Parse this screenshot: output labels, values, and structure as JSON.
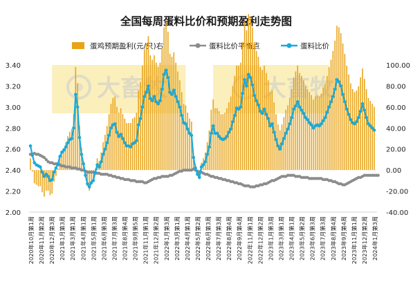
{
  "chart_data": {
    "type": "bar+line",
    "title": "全国每周蛋料比价和预期盈利走势图",
    "legend": [
      {
        "name": "蛋鸡预期盈利(元/只)右",
        "kind": "bar",
        "color": "#E8A317"
      },
      {
        "name": "蛋料比价平衡点",
        "kind": "line",
        "color": "#8C8C8C"
      },
      {
        "name": "蛋料比价",
        "kind": "line",
        "color": "#1BA9DB"
      }
    ],
    "legend_position": "top",
    "watermark_text": "大畜牧",
    "left_axis": {
      "min": 2.0,
      "max": 3.4,
      "ticks": [
        "2.00",
        "2.20",
        "2.40",
        "2.60",
        "2.80",
        "3.00",
        "3.20",
        "3.40"
      ]
    },
    "right_axis": {
      "min": -40,
      "max": 100,
      "ticks": [
        "-40.00",
        "-20.00",
        "0.00",
        "20.00",
        "40.00",
        "60.00",
        "80.00",
        "100.00"
      ]
    },
    "x_tick_labels": [
      "2020年10月第1周",
      "2020年11月第2周",
      "2020年12月第3周",
      "2021年1月第3周",
      "2021年3月第1周",
      "2021年4月第1周",
      "2021年5月第1周",
      "2021年6月第3周",
      "2021年7月第3周",
      "2021年8月第4周",
      "2021年9月第5周",
      "2021年11月第1周",
      "2021年12月第2周",
      "2022年1月第3周",
      "2022年3月第1周",
      "2022年4月第1周",
      "2022年5月第2周",
      "2022年6月第3周",
      "2022年7月第3周",
      "2022年8月第4周",
      "2022年9月第4周",
      "2022年11月第1周",
      "2022年12月第2周",
      "2023年1月第3周",
      "2023年3月第1周",
      "2023年4月第1周",
      "2023年5月第2周",
      "2023年6月第3周",
      "2023年7月第3周",
      "2023年8月第4周",
      "2023年9月第4周",
      "2023年11月第1周",
      "2023年12月第2周",
      "2024年1月第3周"
    ],
    "grid": false,
    "highlight_regions": [
      {
        "from": 11,
        "to": 77,
        "color": "#FBEDB5"
      },
      {
        "from": 95,
        "to": 154,
        "color": "#FBEDB5"
      },
      {
        "from": 154,
        "to": 149,
        "color": "#FBEDB5"
      }
    ],
    "ratio": [
      2.63,
      2.54,
      2.47,
      2.45,
      2.44,
      2.43,
      2.38,
      2.34,
      2.36,
      2.34,
      2.3,
      2.31,
      2.38,
      2.42,
      2.46,
      2.53,
      2.57,
      2.59,
      2.62,
      2.66,
      2.69,
      2.7,
      2.8,
      3.12,
      3.0,
      2.71,
      2.55,
      2.46,
      2.35,
      2.27,
      2.24,
      2.28,
      2.3,
      2.38,
      2.45,
      2.43,
      2.48,
      2.55,
      2.6,
      2.66,
      2.73,
      2.8,
      2.83,
      2.84,
      2.76,
      2.72,
      2.74,
      2.7,
      2.66,
      2.63,
      2.63,
      2.62,
      2.65,
      2.66,
      2.68,
      2.83,
      2.89,
      3.0,
      3.1,
      3.14,
      3.2,
      3.08,
      3.06,
      3.1,
      3.05,
      3.03,
      3.06,
      3.17,
      3.31,
      3.35,
      3.28,
      3.14,
      3.12,
      3.16,
      3.1,
      3.05,
      3.0,
      2.92,
      2.85,
      2.84,
      2.79,
      2.75,
      2.73,
      2.52,
      2.42,
      2.36,
      2.33,
      2.43,
      2.45,
      2.48,
      2.55,
      2.62,
      2.75,
      2.82,
      2.75,
      2.75,
      2.72,
      2.7,
      2.69,
      2.7,
      2.72,
      2.76,
      2.79,
      2.86,
      2.92,
      2.99,
      2.98,
      3.0,
      3.13,
      3.26,
      3.2,
      3.31,
      3.28,
      3.21,
      3.11,
      3.06,
      3.02,
      2.96,
      2.94,
      2.98,
      2.93,
      2.89,
      2.82,
      2.84,
      2.76,
      2.69,
      2.63,
      2.6,
      2.65,
      2.7,
      2.75,
      2.79,
      2.84,
      2.9,
      2.98,
      3.01,
      3.05,
      3.0,
      2.97,
      2.94,
      2.9,
      2.88,
      2.85,
      2.83,
      2.8,
      2.82,
      2.83,
      2.82,
      2.84,
      2.87,
      2.9,
      2.95,
      3.0,
      3.05,
      3.1,
      3.17,
      3.26,
      3.24,
      3.2,
      3.12,
      3.05,
      2.98,
      2.93,
      2.88,
      2.85,
      2.84,
      2.86,
      2.9,
      2.96,
      3.03,
      2.97,
      2.9,
      2.84,
      2.82,
      2.8,
      2.78
    ],
    "breakeven": [
      2.55,
      2.55,
      2.56,
      2.55,
      2.55,
      2.54,
      2.53,
      2.52,
      2.5,
      2.48,
      2.47,
      2.47,
      2.46,
      2.46,
      2.45,
      2.45,
      2.44,
      2.44,
      2.43,
      2.43,
      2.43,
      2.42,
      2.42,
      2.42,
      2.41,
      2.41,
      2.4,
      2.4,
      2.39,
      2.38,
      2.38,
      2.38,
      2.38,
      2.37,
      2.37,
      2.37,
      2.36,
      2.36,
      2.36,
      2.36,
      2.35,
      2.35,
      2.34,
      2.34,
      2.33,
      2.33,
      2.32,
      2.32,
      2.31,
      2.31,
      2.31,
      2.3,
      2.3,
      2.3,
      2.29,
      2.29,
      2.29,
      2.29,
      2.28,
      2.28,
      2.29,
      2.3,
      2.31,
      2.32,
      2.32,
      2.33,
      2.33,
      2.34,
      2.34,
      2.34,
      2.34,
      2.35,
      2.35,
      2.36,
      2.37,
      2.38,
      2.39,
      2.39,
      2.4,
      2.4,
      2.4,
      2.4,
      2.4,
      2.41,
      2.4,
      2.39,
      2.38,
      2.38,
      2.37,
      2.36,
      2.36,
      2.35,
      2.34,
      2.34,
      2.33,
      2.33,
      2.32,
      2.32,
      2.31,
      2.31,
      2.3,
      2.3,
      2.29,
      2.29,
      2.28,
      2.28,
      2.27,
      2.27,
      2.26,
      2.25,
      2.25,
      2.25,
      2.24,
      2.24,
      2.24,
      2.25,
      2.25,
      2.26,
      2.26,
      2.27,
      2.27,
      2.28,
      2.29,
      2.3,
      2.3,
      2.31,
      2.32,
      2.33,
      2.34,
      2.34,
      2.34,
      2.35,
      2.35,
      2.35,
      2.35,
      2.34,
      2.34,
      2.34,
      2.33,
      2.33,
      2.33,
      2.33,
      2.32,
      2.32,
      2.32,
      2.32,
      2.32,
      2.32,
      2.32,
      2.31,
      2.31,
      2.31,
      2.3,
      2.3,
      2.29,
      2.29,
      2.28,
      2.27,
      2.27,
      2.26,
      2.26,
      2.27,
      2.28,
      2.29,
      2.3,
      2.31,
      2.32,
      2.33,
      2.33,
      2.34,
      2.35,
      2.35,
      2.35,
      2.35,
      2.35,
      2.35,
      2.35,
      2.35
    ]
  }
}
